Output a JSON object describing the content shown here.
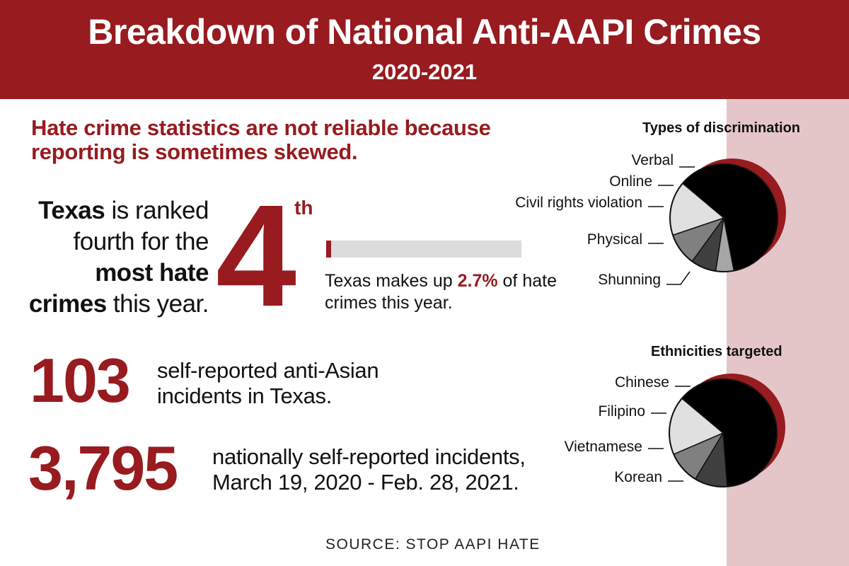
{
  "header": {
    "title": "Breakdown of National Anti-AAPI Crimes",
    "subtitle": "2020-2021"
  },
  "lead": "Hate crime statistics are not reliable because reporting is sometimes skewed.",
  "rank": {
    "text_bold_1": "Texas",
    "text_1": " is ranked fourth for the ",
    "text_bold_2": "most hate crimes",
    "text_2": " this year.",
    "number": "4",
    "suffix": "th"
  },
  "share": {
    "text_before": "Texas makes up ",
    "percent": "2.7%",
    "text_after": " of hate crimes this year.",
    "value": 2.7
  },
  "stats": [
    {
      "number": "103",
      "description": "self-reported anti-Asian incidents in Texas."
    },
    {
      "number": "3,795",
      "description": "nationally self-reported incidents, March 19, 2020 - Feb. 28, 2021."
    }
  ],
  "source": "SOURCE: STOP AAPI HATE",
  "colors": {
    "brand_red": "#971b1f",
    "band_pink": "#e5c6c8",
    "slice_black": "#000000",
    "slice_dark": "#404040",
    "slice_mid": "#808080",
    "slice_light": "#a6a6a6",
    "slice_pale": "#e0e0e0"
  },
  "chart_data": [
    {
      "type": "pie",
      "title": "Types of discrimination",
      "categories": [
        "Verbal",
        "Online",
        "Civil rights violation",
        "Physical",
        "Shunning"
      ],
      "values": [
        56,
        5,
        7,
        9,
        15
      ]
    },
    {
      "type": "pie",
      "title": "Ethnicities targeted",
      "categories": [
        "Chinese",
        "Filipino",
        "Vietnamese",
        "Korean"
      ],
      "values": [
        57,
        9,
        9,
        16
      ]
    }
  ]
}
